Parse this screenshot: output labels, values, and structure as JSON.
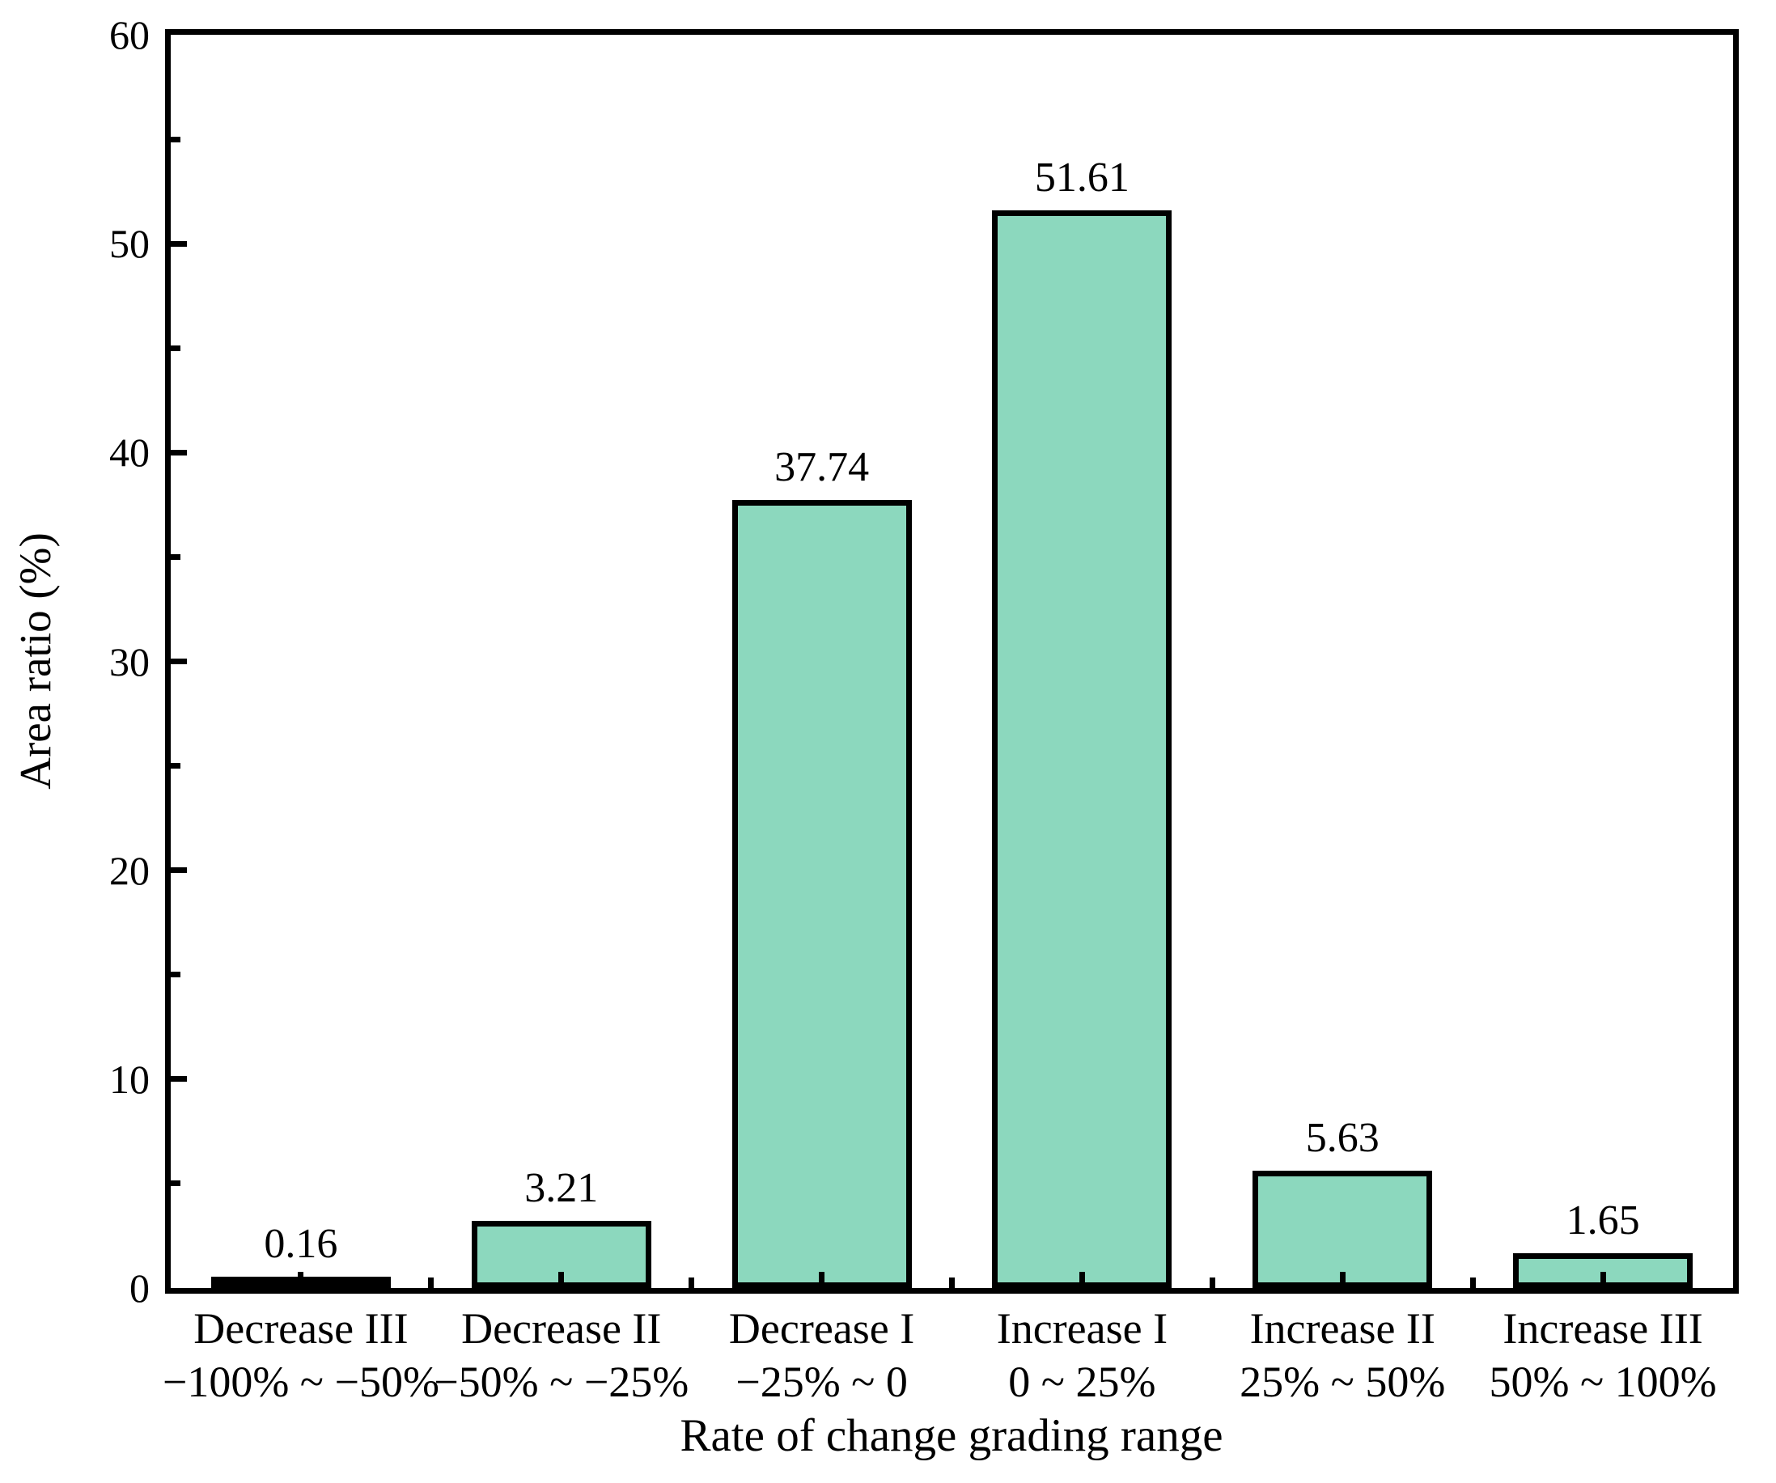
{
  "chart_data": {
    "type": "bar",
    "title": "",
    "xlabel": "Rate of change grading range",
    "ylabel": "Area ratio (%)",
    "ylim": [
      0,
      60
    ],
    "y_major_ticks": [
      0,
      10,
      20,
      30,
      40,
      50,
      60
    ],
    "y_tick_labels": [
      "0",
      "10",
      "20",
      "30",
      "40",
      "50",
      "60"
    ],
    "y_minor_tick_step": 5,
    "grid": false,
    "legend_position": "none",
    "colors": {
      "bar_fill": "#8CD8BE",
      "bar_edge": "#000000",
      "axis": "#000000",
      "text": "#000000",
      "background": "#FFFFFF"
    },
    "categories": [
      "Decrease III",
      "Decrease II",
      "Decrease I",
      "Increase I",
      "Increase II",
      "Increase III"
    ],
    "range_labels": [
      "−100% ~ −50%",
      "−50% ~ −25%",
      "−25% ~ 0",
      "0 ~ 25%",
      "25% ~ 50%",
      "50% ~ 100%"
    ],
    "values": [
      0.16,
      3.21,
      37.74,
      51.61,
      5.63,
      1.65
    ],
    "value_labels": [
      "0.16",
      "3.21",
      "37.74",
      "51.61",
      "5.63",
      "1.65"
    ]
  }
}
